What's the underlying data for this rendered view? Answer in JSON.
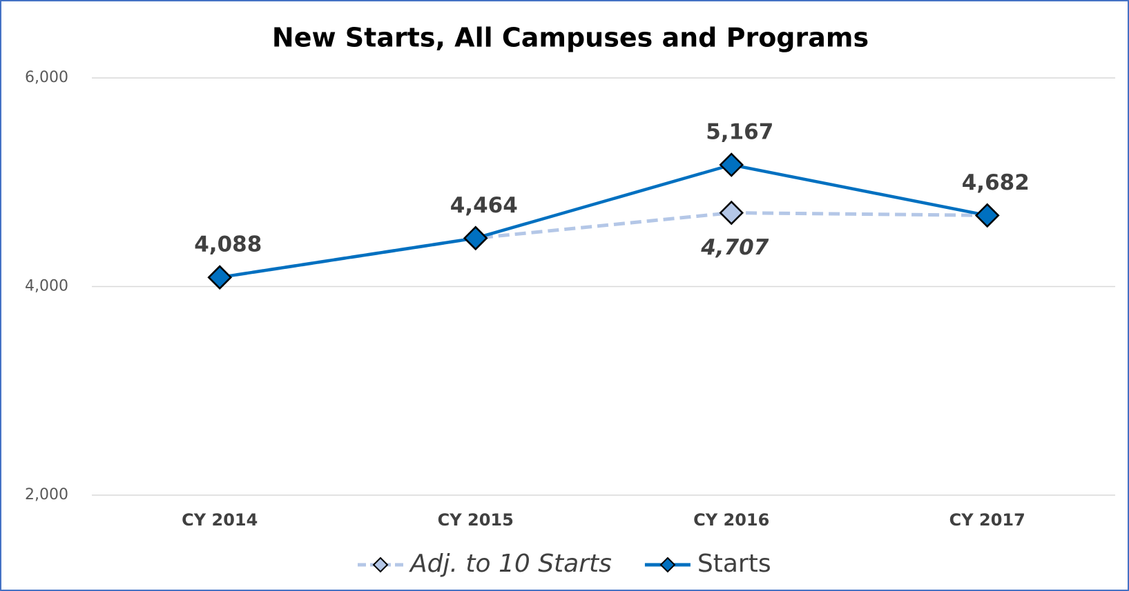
{
  "chart_data": {
    "type": "line",
    "title": "New Starts, All Campuses and Programs",
    "categories": [
      "CY 2014",
      "CY 2015",
      "CY 2016",
      "CY 2017"
    ],
    "series": [
      {
        "name": "Adj. to 10 Starts",
        "color": "#b4c7e7",
        "line_style": "dashed",
        "values": [
          4088,
          4464,
          4707,
          4682
        ],
        "value_labels": [
          null,
          null,
          "4,707",
          null
        ]
      },
      {
        "name": "Starts",
        "color": "#0070c0",
        "line_style": "solid",
        "values": [
          4088,
          4464,
          5167,
          4682
        ],
        "value_labels": [
          "4,088",
          "4,464",
          "5,167",
          "4,682"
        ]
      }
    ],
    "ylim": [
      2000,
      6000
    ],
    "yticks": [
      {
        "value": 2000,
        "label": "2,000"
      },
      {
        "value": 4000,
        "label": "4,000"
      },
      {
        "value": 6000,
        "label": "6,000"
      }
    ],
    "grid": true,
    "legend": "bottom"
  }
}
